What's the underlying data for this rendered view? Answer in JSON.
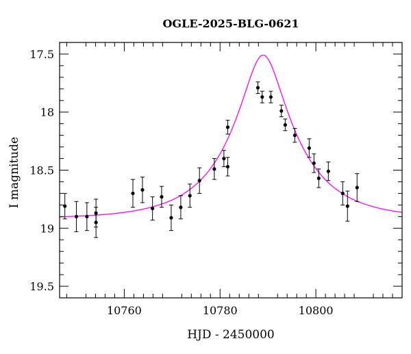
{
  "chart_data": {
    "type": "scatter",
    "title": "OGLE-2025-BLG-0621",
    "xlabel": "HJD - 2450000",
    "ylabel": "I magnitude",
    "xlim": [
      10746.5,
      10818
    ],
    "ylim": [
      19.6,
      17.4
    ],
    "y_inverted": true,
    "x_ticks": [
      10760,
      10780,
      10800
    ],
    "y_ticks": [
      17.5,
      18,
      18.5,
      19,
      19.5
    ],
    "grid": false,
    "legend": "none",
    "colors": {
      "points": "#000000",
      "model": "#ff00ff",
      "axes": "#000000"
    },
    "series": [
      {
        "points": [
          {
            "x": 10747.6,
            "y": 18.81,
            "err": 0.11
          },
          {
            "x": 10750.0,
            "y": 18.9,
            "err": 0.13
          },
          {
            "x": 10752.2,
            "y": 18.9,
            "err": 0.12
          },
          {
            "x": 10754.1,
            "y": 18.87,
            "err": 0.12
          },
          {
            "x": 10754.1,
            "y": 18.95,
            "err": 0.13
          },
          {
            "x": 10761.8,
            "y": 18.7,
            "err": 0.12
          },
          {
            "x": 10763.8,
            "y": 18.67,
            "err": 0.11
          },
          {
            "x": 10765.9,
            "y": 18.83,
            "err": 0.1
          },
          {
            "x": 10767.8,
            "y": 18.73,
            "err": 0.09
          },
          {
            "x": 10769.8,
            "y": 18.91,
            "err": 0.11
          },
          {
            "x": 10771.8,
            "y": 18.82,
            "err": 0.1
          },
          {
            "x": 10773.7,
            "y": 18.72,
            "err": 0.1
          },
          {
            "x": 10775.7,
            "y": 18.59,
            "err": 0.11
          },
          {
            "x": 10778.8,
            "y": 18.49,
            "err": 0.09
          },
          {
            "x": 10780.8,
            "y": 18.4,
            "err": 0.07
          },
          {
            "x": 10781.6,
            "y": 18.47,
            "err": 0.08
          },
          {
            "x": 10781.6,
            "y": 18.13,
            "err": 0.06
          },
          {
            "x": 10787.9,
            "y": 17.79,
            "err": 0.05
          },
          {
            "x": 10788.8,
            "y": 17.87,
            "err": 0.05
          },
          {
            "x": 10790.6,
            "y": 17.87,
            "err": 0.05
          },
          {
            "x": 10792.8,
            "y": 17.99,
            "err": 0.05
          },
          {
            "x": 10793.6,
            "y": 18.11,
            "err": 0.05
          },
          {
            "x": 10795.6,
            "y": 18.2,
            "err": 0.06
          },
          {
            "x": 10798.6,
            "y": 18.31,
            "err": 0.08
          },
          {
            "x": 10799.6,
            "y": 18.44,
            "err": 0.08
          },
          {
            "x": 10800.6,
            "y": 18.57,
            "err": 0.08
          },
          {
            "x": 10802.6,
            "y": 18.51,
            "err": 0.08
          },
          {
            "x": 10805.6,
            "y": 18.7,
            "err": 0.1
          },
          {
            "x": 10806.6,
            "y": 18.81,
            "err": 0.13
          },
          {
            "x": 10808.6,
            "y": 18.65,
            "err": 0.12
          }
        ]
      }
    ],
    "model": {
      "type": "paczynski",
      "t0": 10789.0,
      "u0": 0.2806,
      "tE": 14.0,
      "base_mag": 18.92
    }
  }
}
